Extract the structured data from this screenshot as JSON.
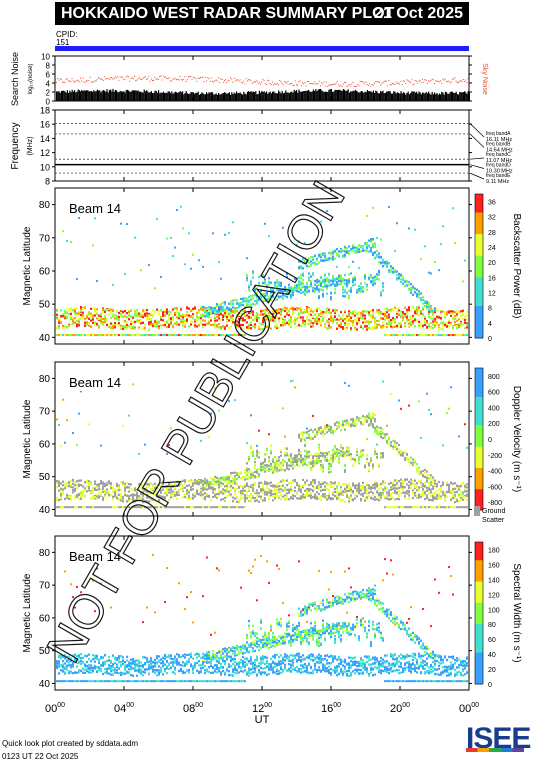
{
  "header": {
    "title": "HOKKAIDO WEST RADAR SUMMARY PLOT",
    "date": "21 Oct 2025"
  },
  "cpid": {
    "label": "CPID:",
    "value": "151"
  },
  "footer": {
    "credit": "Quick look plot created by sddata.adm",
    "timestamp": "0123 UT 22 Oct 2025",
    "logo_text": "ISEE"
  },
  "watermark": "NOT FOR PUBLICATION",
  "colors": {
    "cpid_bar": "#1e1eff",
    "noise_red": "#e8502a",
    "ground_scatter": "#a0a0a0"
  },
  "chart_data": [
    {
      "type": "scatter",
      "name": "noise",
      "ylabel": "Search Noise",
      "ylabel_sub": "log₁₀(noise)",
      "yticks": [
        0,
        2,
        4,
        6,
        8,
        10
      ],
      "ylim": [
        0,
        10
      ],
      "right_label": "Sky Noise",
      "series": [
        {
          "name": "Search Noise",
          "color": "#000000",
          "approx_level": 2
        },
        {
          "name": "Sky Noise",
          "color": "#e8502a",
          "approx_level": 4.5
        }
      ]
    },
    {
      "type": "line",
      "name": "frequency",
      "ylabel": "Frequency",
      "ylabel_unit": "(MHz)",
      "yticks": [
        8,
        10,
        12,
        14,
        16,
        18
      ],
      "ylim": [
        8,
        18
      ],
      "bands": [
        {
          "label": "freq bandA",
          "freq": "16.11 MHz",
          "value": 16.11
        },
        {
          "label": "freq bandB",
          "freq": "14.64 MHz",
          "value": 14.64
        },
        {
          "label": "freq bandC",
          "freq": "11.07 MHz",
          "value": 11.07
        },
        {
          "label": "freq bandD",
          "freq": "10.30 MHz",
          "value": 10.3
        },
        {
          "label": "freq bandE",
          "freq": "9.11 MHz",
          "value": 9.11
        }
      ],
      "active_value": 10.3
    },
    {
      "type": "heatmap",
      "name": "power",
      "beam_label": "Beam 14",
      "ylabel": "Magnetic Latitude",
      "yticks": [
        40,
        50,
        60,
        70,
        80
      ],
      "ylim": [
        38,
        85
      ],
      "colorbar_label": "Backscatter Power (dB)",
      "colorbar_ticks": [
        "36",
        "32",
        "28",
        "24",
        "20",
        "16",
        "12",
        "8",
        "4",
        "0"
      ],
      "colorbar_range": [
        0,
        38
      ]
    },
    {
      "type": "heatmap",
      "name": "velocity",
      "beam_label": "Beam 14",
      "ylabel": "Magnetic Latitude",
      "yticks": [
        40,
        50,
        60,
        70,
        80
      ],
      "ylim": [
        38,
        85
      ],
      "colorbar_label": "Doppler Velocity (m s⁻¹)",
      "colorbar_ticks": [
        "800",
        "600",
        "400",
        "200",
        "0",
        "-200",
        "-400",
        "-600",
        "-800"
      ],
      "colorbar_range": [
        -900,
        900
      ],
      "ground_scatter_label": [
        "Ground",
        "Scatter"
      ]
    },
    {
      "type": "heatmap",
      "name": "width",
      "beam_label": "Beam 14",
      "ylabel": "Magnetic Latitude",
      "yticks": [
        40,
        50,
        60,
        70,
        80
      ],
      "ylim": [
        38,
        85
      ],
      "colorbar_label": "Spectral Width (m s⁻¹)",
      "colorbar_ticks": [
        "180",
        "160",
        "140",
        "120",
        "100",
        "80",
        "60",
        "40",
        "20",
        "0"
      ],
      "colorbar_range": [
        0,
        190
      ]
    }
  ],
  "xaxis": {
    "label": "UT",
    "ticks": [
      {
        "hour": 0,
        "label": "00",
        "sup": "00"
      },
      {
        "hour": 4,
        "label": "04",
        "sup": "00"
      },
      {
        "hour": 8,
        "label": "08",
        "sup": "00"
      },
      {
        "hour": 12,
        "label": "12",
        "sup": "00"
      },
      {
        "hour": 16,
        "label": "16",
        "sup": "00"
      },
      {
        "hour": 20,
        "label": "20",
        "sup": "00"
      },
      {
        "hour": 24,
        "label": "00",
        "sup": "00"
      }
    ],
    "xlim": [
      0,
      24
    ]
  }
}
